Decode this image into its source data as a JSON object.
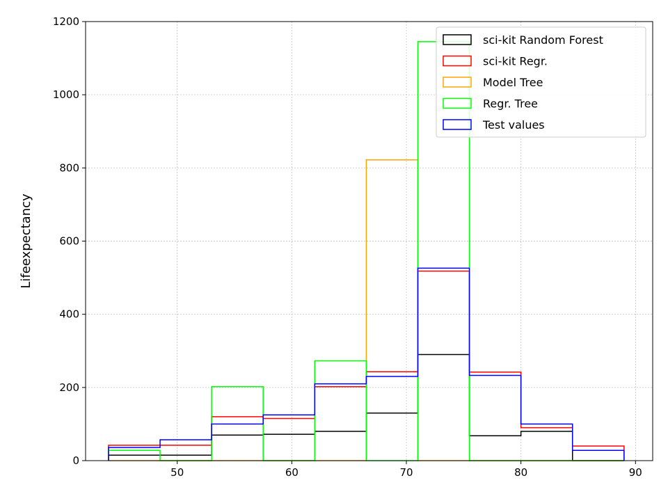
{
  "chart_data": {
    "type": "histogram",
    "title": "",
    "xlabel": "",
    "ylabel": "Lifeexpectancy",
    "xlim": [
      42,
      91.5
    ],
    "ylim": [
      0,
      1200
    ],
    "xticks": [
      50,
      60,
      70,
      80,
      90
    ],
    "yticks": [
      0,
      200,
      400,
      600,
      800,
      1000,
      1200
    ],
    "grid": true,
    "legend_position": "top-right",
    "bin_edges": [
      44.0,
      48.5,
      53.0,
      57.5,
      62.0,
      66.5,
      71.0,
      75.5,
      80.0,
      84.5,
      89.0
    ],
    "series": [
      {
        "name": "sci-kit Random Forest",
        "color": "#000000",
        "values": [
          15,
          15,
          70,
          72,
          80,
          130,
          290,
          68,
          80,
          0
        ]
      },
      {
        "name": "sci-kit Regr.",
        "color": "#ff0000",
        "values": [
          42,
          42,
          120,
          115,
          202,
          243,
          518,
          242,
          90,
          40
        ]
      },
      {
        "name": "Model Tree",
        "color": "#ffa500",
        "values": [
          0,
          0,
          0,
          0,
          0,
          822,
          0,
          0,
          0,
          0
        ]
      },
      {
        "name": "Regr. Tree",
        "color": "#00ff00",
        "values": [
          28,
          0,
          202,
          0,
          273,
          0,
          1145,
          0,
          0,
          0
        ]
      },
      {
        "name": "Test values",
        "color": "#0000ff",
        "values": [
          36,
          57,
          100,
          125,
          210,
          230,
          526,
          233,
          100,
          28
        ]
      }
    ]
  }
}
